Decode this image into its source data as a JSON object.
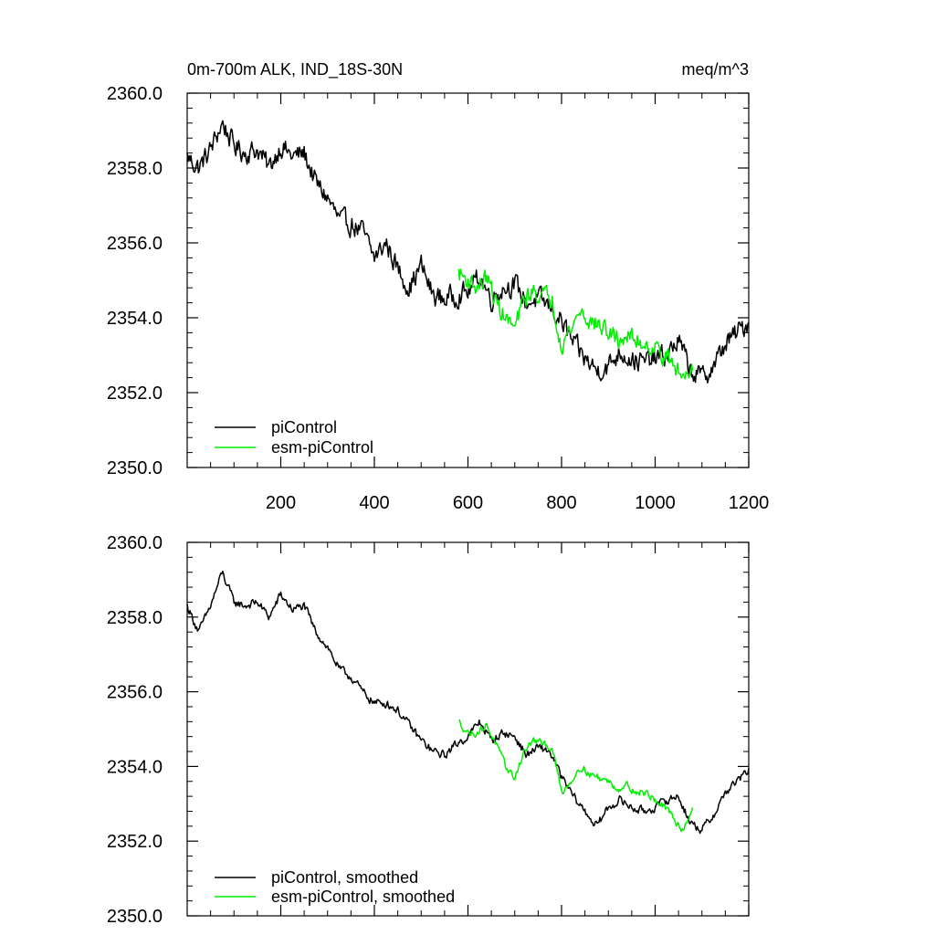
{
  "chart_data": [
    {
      "type": "line",
      "title": "0m-700m ALK, IND_18S-30N",
      "units": "meq/m^3",
      "xlim": [
        0,
        1200
      ],
      "ylim": [
        2350,
        2360
      ],
      "x_ticks": [
        200,
        400,
        600,
        800,
        1000,
        1200
      ],
      "x_tick_labels": [
        "200",
        "400",
        "600",
        "800",
        "1000",
        "1200"
      ],
      "y_ticks": [
        2350,
        2352,
        2354,
        2356,
        2358,
        2360
      ],
      "y_tick_labels": [
        "2350.0",
        "2352.0",
        "2354.0",
        "2356.0",
        "2358.0",
        "2360.0"
      ],
      "legend_position": "bottom-left",
      "series": [
        {
          "name": "piControl",
          "color": "#000000",
          "x": [
            0,
            25,
            50,
            75,
            100,
            125,
            150,
            175,
            200,
            225,
            250,
            275,
            300,
            325,
            350,
            375,
            400,
            425,
            450,
            475,
            500,
            525,
            550,
            575,
            600,
            625,
            650,
            675,
            700,
            725,
            750,
            775,
            800,
            825,
            850,
            875,
            900,
            925,
            950,
            975,
            1000,
            1025,
            1050,
            1075,
            1100,
            1125,
            1150,
            1175,
            1200
          ],
          "values": [
            2358.3,
            2358.0,
            2358.5,
            2359.2,
            2358.6,
            2358.4,
            2358.5,
            2358.0,
            2358.6,
            2358.3,
            2358.4,
            2357.6,
            2357.2,
            2356.6,
            2356.5,
            2356.3,
            2355.6,
            2356.0,
            2355.3,
            2354.8,
            2355.4,
            2354.6,
            2354.5,
            2354.6,
            2354.7,
            2355.1,
            2354.5,
            2354.8,
            2354.9,
            2354.4,
            2354.5,
            2354.3,
            2353.9,
            2353.3,
            2352.9,
            2352.6,
            2352.7,
            2353.1,
            2352.9,
            2352.8,
            2352.9,
            2353.0,
            2353.4,
            2352.6,
            2352.4,
            2352.7,
            2353.3,
            2353.6,
            2353.9
          ],
          "noise": 0.45
        },
        {
          "name": "esm-piControl",
          "color": "#00ee00",
          "x": [
            580,
            600,
            620,
            640,
            660,
            680,
            700,
            720,
            740,
            760,
            780,
            800,
            820,
            840,
            860,
            880,
            900,
            920,
            940,
            960,
            980,
            1000,
            1020,
            1040,
            1060,
            1080
          ],
          "values": [
            2355.2,
            2355.0,
            2354.8,
            2355.1,
            2354.4,
            2354.0,
            2353.7,
            2354.5,
            2354.7,
            2354.6,
            2354.5,
            2353.3,
            2353.7,
            2354.2,
            2353.9,
            2353.8,
            2353.6,
            2353.4,
            2353.5,
            2353.4,
            2353.3,
            2353.2,
            2353.0,
            2352.7,
            2352.4,
            2352.8
          ],
          "noise": 0.4
        }
      ]
    },
    {
      "type": "line",
      "xlim": [
        0,
        1200
      ],
      "ylim": [
        2350,
        2360
      ],
      "x_ticks": [
        200,
        400,
        600,
        800,
        1000,
        1200
      ],
      "y_ticks": [
        2350,
        2352,
        2354,
        2356,
        2358,
        2360
      ],
      "y_tick_labels": [
        "2350.0",
        "2352.0",
        "2354.0",
        "2356.0",
        "2358.0",
        "2360.0"
      ],
      "legend_position": "bottom-left",
      "series": [
        {
          "name": "piControl, smoothed",
          "color": "#000000",
          "x": [
            0,
            25,
            50,
            75,
            100,
            125,
            150,
            175,
            200,
            225,
            250,
            275,
            300,
            325,
            350,
            375,
            400,
            425,
            450,
            475,
            500,
            525,
            550,
            575,
            600,
            625,
            650,
            675,
            700,
            725,
            750,
            775,
            800,
            825,
            850,
            875,
            900,
            925,
            950,
            975,
            1000,
            1025,
            1050,
            1075,
            1100,
            1125,
            1150,
            1175,
            1200
          ],
          "values": [
            2358.3,
            2357.6,
            2358.3,
            2359.2,
            2358.4,
            2358.3,
            2358.4,
            2358.0,
            2358.6,
            2358.2,
            2358.3,
            2357.6,
            2357.2,
            2356.6,
            2356.4,
            2356.0,
            2355.7,
            2355.7,
            2355.5,
            2355.1,
            2354.7,
            2354.4,
            2354.3,
            2354.6,
            2354.8,
            2355.2,
            2354.7,
            2354.9,
            2354.8,
            2354.3,
            2354.5,
            2354.4,
            2353.7,
            2353.2,
            2352.8,
            2352.4,
            2352.9,
            2353.1,
            2352.9,
            2352.8,
            2352.9,
            2353.1,
            2353.2,
            2352.5,
            2352.3,
            2352.7,
            2353.3,
            2353.6,
            2353.9
          ],
          "noise": 0.18
        },
        {
          "name": "esm-piControl, smoothed",
          "color": "#00ee00",
          "x": [
            580,
            600,
            620,
            640,
            660,
            680,
            700,
            720,
            740,
            760,
            780,
            800,
            820,
            840,
            860,
            880,
            900,
            920,
            940,
            960,
            980,
            1000,
            1020,
            1040,
            1060,
            1080
          ],
          "values": [
            2355.2,
            2354.9,
            2354.9,
            2355.1,
            2354.6,
            2354.0,
            2353.7,
            2354.4,
            2354.7,
            2354.6,
            2354.5,
            2353.3,
            2353.6,
            2354.0,
            2353.8,
            2353.7,
            2353.6,
            2353.4,
            2353.5,
            2353.3,
            2353.3,
            2353.1,
            2352.9,
            2352.6,
            2352.3,
            2352.9
          ],
          "noise": 0.15
        }
      ]
    }
  ]
}
